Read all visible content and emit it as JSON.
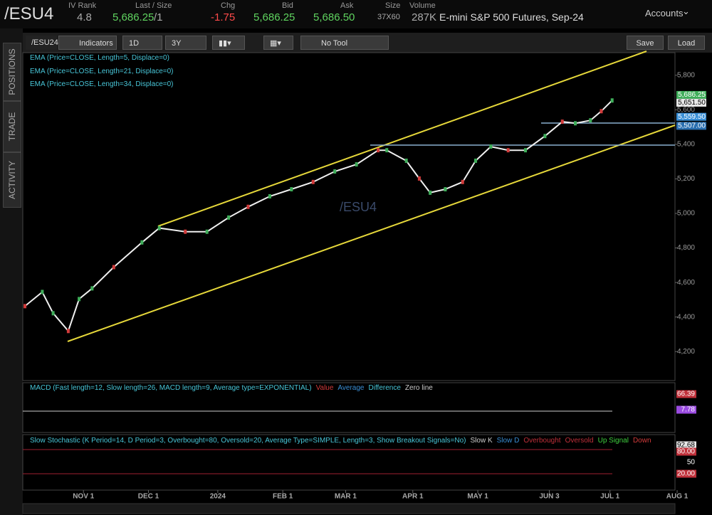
{
  "header": {
    "symbol": "/ESU4",
    "iv_rank_label": "IV Rank",
    "iv_rank": "4.8",
    "last_label": "Last / Size",
    "last": "5,686.25",
    "last_size": "/1",
    "chg_label": "Chg",
    "chg": "-1.75",
    "bid_label": "Bid",
    "bid": "5,686.25",
    "ask_label": "Ask",
    "ask": "5,686.50",
    "size_label": "Size",
    "size": "37X60",
    "volume_label": "Volume",
    "volume": "287K",
    "description": "E-mini S&P 500 Futures, Sep-24",
    "accounts": "Accounts"
  },
  "sidebar": {
    "tabs": [
      "POSITIONS",
      "TRADE",
      "ACTIVITY"
    ]
  },
  "toolbar": {
    "symbol": "/ESU24",
    "indicators": "Indicators",
    "aggregation": "1D",
    "range": "3Y",
    "tool": "No Tool",
    "save": "Save",
    "load": "Load"
  },
  "price_chart": {
    "watermark": "/ESU4",
    "studies": [
      "EMA (Price=CLOSE, Length=5, Displace=0)",
      "EMA (Price=CLOSE, Length=21, Displace=0)",
      "EMA (Price=CLOSE, Length=34, Displace=0)"
    ],
    "x": [
      4,
      12,
      17,
      24,
      29,
      35,
      45,
      58,
      66,
      78,
      88,
      98,
      107,
      117,
      127,
      137,
      147,
      157,
      167,
      171,
      180,
      186,
      191,
      198,
      206,
      212,
      219,
      227,
      235,
      244,
      252,
      258,
      265,
      270,
      275
    ],
    "close": [
      4463,
      4545,
      4422,
      4319,
      4504,
      4566,
      4689,
      4832,
      4915,
      4894,
      4894,
      4976,
      5038,
      5099,
      5140,
      5182,
      5243,
      5284,
      5366,
      5366,
      5305,
      5202,
      5120,
      5140,
      5182,
      5305,
      5387,
      5366,
      5366,
      5448,
      5531,
      5522,
      5539,
      5592,
      5654
    ],
    "xlim": [
      3,
      304
    ],
    "ylim": [
      4032,
      5931
    ],
    "xticks": [
      {
        "value": 31,
        "label": "NOV 1"
      },
      {
        "value": 61,
        "label": "DEC 1"
      },
      {
        "value": 93,
        "label": "2024"
      },
      {
        "value": 123,
        "label": "FEB 1"
      },
      {
        "value": 152,
        "label": "MAR 1"
      },
      {
        "value": 183,
        "label": "APR 1"
      },
      {
        "value": 213,
        "label": "MAY 1"
      },
      {
        "value": 246,
        "label": "JUN 3"
      },
      {
        "value": 274,
        "label": "JUL 1"
      },
      {
        "value": 305,
        "label": "AUG 1"
      }
    ],
    "yticks": [
      {
        "value": 4200,
        "label": "4,200"
      },
      {
        "value": 4400,
        "label": "4,400"
      },
      {
        "value": 4600,
        "label": "4,600"
      },
      {
        "value": 4800,
        "label": "4,800"
      },
      {
        "value": 5000,
        "label": "5,000"
      },
      {
        "value": 5200,
        "label": "5,200"
      },
      {
        "value": 5400,
        "label": "5,400"
      },
      {
        "value": 5600,
        "label": "5,600"
      },
      {
        "value": 5800,
        "label": "5,800"
      }
    ],
    "value_labels": [
      {
        "value": 5686.25,
        "label": "5,686.25",
        "color": "#3fae5a"
      },
      {
        "value": 5651.5,
        "label": "5,651.50",
        "color": "#e8e8e8"
      },
      {
        "value": 5559.5,
        "label": "5,559.50",
        "color": "#3a8fd6"
      },
      {
        "value": 5507,
        "label": "5,507.00",
        "color": "#2a6fb0"
      }
    ]
  },
  "macd": {
    "title": "MACD (Fast length=12, Slow length=26, MACD length=9, Average type=EXPONENTIAL)",
    "legend": [
      {
        "name": "Value",
        "color": "#d23b3b"
      },
      {
        "name": "Average",
        "color": "#3a8fd6"
      },
      {
        "name": "Difference",
        "color": "#48c6d8"
      },
      {
        "name": "Zero line",
        "color": "#cccccc"
      }
    ],
    "value_labels": [
      {
        "label": "66.39",
        "color": "#c0303a"
      },
      {
        "label": "7.78",
        "color": "#9a4be0"
      }
    ]
  },
  "stochastic": {
    "title": "Slow Stochastic (K Period=14, D Period=3, Overbought=80, Oversold=20, Average Type=SIMPLE, Length=3, Show Breakout Signals=No)",
    "legend": [
      {
        "name": "Slow K",
        "color": "#cccccc"
      },
      {
        "name": "Slow D",
        "color": "#3a8fd6"
      },
      {
        "name": "Overbought",
        "color": "#c0303a"
      },
      {
        "name": "Oversold",
        "color": "#c0303a"
      },
      {
        "name": "Up Signal",
        "color": "#3fcf3f"
      },
      {
        "name": "Down",
        "color": "#d23b3b"
      }
    ],
    "value_labels": [
      {
        "label": "92.68",
        "color": "#e8e8e8"
      },
      {
        "label": "80.00",
        "color": "#c0303a"
      },
      {
        "label": "50",
        "color": "#000000"
      },
      {
        "label": "20.00",
        "color": "#c0303a"
      }
    ]
  }
}
